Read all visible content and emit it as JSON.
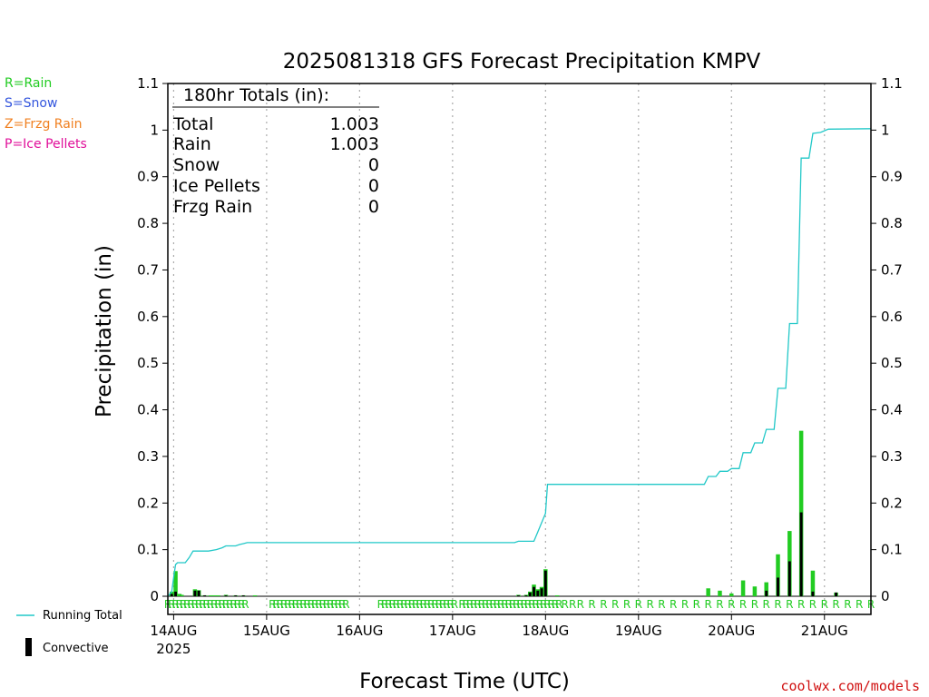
{
  "colors": {
    "rain": "#22cc22",
    "snow": "#3355dd",
    "frzg_rain": "#f08020",
    "ice_pellets": "#e0109a",
    "running_total": "#22c8c8",
    "convective": "#000000",
    "grid": "#aaaaaa",
    "credit": "#d01010"
  },
  "ptype_legend": [
    "R=Rain",
    "S=Snow",
    "Z=Frzg Rain",
    "P=Ice Pellets"
  ],
  "totals_box": {
    "header": "180hr Totals (in):",
    "rows": [
      {
        "label": "Total",
        "value": "1.003"
      },
      {
        "label": "Rain",
        "value": "1.003"
      },
      {
        "label": "Snow",
        "value": "0"
      },
      {
        "label": "Ice Pellets",
        "value": "0"
      },
      {
        "label": "Frzg Rain",
        "value": "0"
      }
    ]
  },
  "series_legend": {
    "running_total": "Running Total",
    "convective": "Convective"
  },
  "credit": "coolwx.com/models",
  "chart_data": {
    "type": "bar",
    "title": "2025081318 GFS Forecast Precipitation KMPV",
    "xlabel": "Forecast Time (UTC)",
    "ylabel": "Precipitation (in)",
    "ylim": [
      0,
      1.1
    ],
    "yticks": [
      "0",
      "0.1",
      "0.2",
      "0.3",
      "0.4",
      "0.5",
      "0.6",
      "0.7",
      "0.8",
      "0.9",
      "1",
      "1.1"
    ],
    "xlim_hours": [
      -1.5,
      180
    ],
    "x_ticks": [
      {
        "hour": 0,
        "label": "14AUG",
        "sublabel": "2025"
      },
      {
        "hour": 24,
        "label": "15AUG"
      },
      {
        "hour": 48,
        "label": "16AUG"
      },
      {
        "hour": 72,
        "label": "17AUG"
      },
      {
        "hour": 96,
        "label": "18AUG"
      },
      {
        "hour": 120,
        "label": "19AUG"
      },
      {
        "hour": 144,
        "label": "20AUG"
      },
      {
        "hour": 168,
        "label": "21AUG"
      }
    ],
    "precip_bars": [
      {
        "hour": -0.5,
        "total": 0.01,
        "convective": 0.005
      },
      {
        "hour": 0.5,
        "total": 0.054,
        "convective": 0.01
      },
      {
        "hour": 1.5,
        "total": 0.005,
        "convective": 0.0
      },
      {
        "hour": 1.9,
        "total": 0.003,
        "convective": 0.003
      },
      {
        "hour": 2.1,
        "total": 0.003,
        "convective": 0.0
      },
      {
        "hour": 5.5,
        "total": 0.015,
        "convective": 0.012
      },
      {
        "hour": 6.5,
        "total": 0.013,
        "convective": 0.012
      },
      {
        "hour": 8,
        "total": 0.002,
        "convective": 0.002
      },
      {
        "hour": 9.5,
        "total": 0.002,
        "convective": 0.0
      },
      {
        "hour": 10.5,
        "total": 0.002,
        "convective": 0.0
      },
      {
        "hour": 11.5,
        "total": 0.002,
        "convective": 0.0
      },
      {
        "hour": 13.5,
        "total": 0.003,
        "convective": 0.002
      },
      {
        "hour": 16,
        "total": 0.002,
        "convective": 0.002
      },
      {
        "hour": 18,
        "total": 0.002,
        "convective": 0.002
      },
      {
        "hour": 21,
        "total": 0.002,
        "convective": 0.0
      },
      {
        "hour": 89,
        "total": 0.003,
        "convective": 0.002
      },
      {
        "hour": 91,
        "total": 0.003,
        "convective": 0.002
      },
      {
        "hour": 92,
        "total": 0.01,
        "convective": 0.008
      },
      {
        "hour": 93,
        "total": 0.025,
        "convective": 0.02
      },
      {
        "hour": 94,
        "total": 0.015,
        "convective": 0.012
      },
      {
        "hour": 95,
        "total": 0.02,
        "convective": 0.017
      },
      {
        "hour": 96,
        "total": 0.058,
        "convective": 0.055
      },
      {
        "hour": 99,
        "total": 0.002,
        "convective": 0.0
      },
      {
        "hour": 138,
        "total": 0.017,
        "convective": 0.0
      },
      {
        "hour": 141,
        "total": 0.012,
        "convective": 0.0
      },
      {
        "hour": 144,
        "total": 0.006,
        "convective": 0.0
      },
      {
        "hour": 147,
        "total": 0.034,
        "convective": 0.0
      },
      {
        "hour": 150,
        "total": 0.021,
        "convective": 0.0
      },
      {
        "hour": 153,
        "total": 0.03,
        "convective": 0.012
      },
      {
        "hour": 156,
        "total": 0.09,
        "convective": 0.04
      },
      {
        "hour": 159,
        "total": 0.14,
        "convective": 0.075
      },
      {
        "hour": 162,
        "total": 0.355,
        "convective": 0.18
      },
      {
        "hour": 165,
        "total": 0.055,
        "convective": 0.01
      },
      {
        "hour": 171,
        "total": 0.008,
        "convective": 0.008
      }
    ],
    "running_total": [
      [
        -1.5,
        0.0
      ],
      [
        -0.5,
        0.01
      ],
      [
        0,
        0.04
      ],
      [
        0.5,
        0.068
      ],
      [
        1,
        0.072
      ],
      [
        3,
        0.072
      ],
      [
        4,
        0.083
      ],
      [
        5,
        0.097
      ],
      [
        9,
        0.097
      ],
      [
        11,
        0.1
      ],
      [
        12.5,
        0.104
      ],
      [
        13.5,
        0.108
      ],
      [
        16,
        0.108
      ],
      [
        17,
        0.111
      ],
      [
        18,
        0.113
      ],
      [
        19,
        0.115
      ],
      [
        88,
        0.115
      ],
      [
        89,
        0.118
      ],
      [
        93,
        0.118
      ],
      [
        94,
        0.138
      ],
      [
        95,
        0.158
      ],
      [
        96,
        0.178
      ],
      [
        96.5,
        0.24
      ],
      [
        137,
        0.24
      ],
      [
        138,
        0.257
      ],
      [
        140,
        0.257
      ],
      [
        141,
        0.268
      ],
      [
        143,
        0.268
      ],
      [
        144,
        0.274
      ],
      [
        146,
        0.274
      ],
      [
        147,
        0.308
      ],
      [
        149,
        0.308
      ],
      [
        150,
        0.329
      ],
      [
        152,
        0.329
      ],
      [
        153,
        0.358
      ],
      [
        155,
        0.358
      ],
      [
        156,
        0.446
      ],
      [
        158,
        0.446
      ],
      [
        159,
        0.585
      ],
      [
        161,
        0.585
      ],
      [
        162,
        0.94
      ],
      [
        164,
        0.94
      ],
      [
        165,
        0.993
      ],
      [
        167,
        0.995
      ],
      [
        169,
        1.002
      ],
      [
        180,
        1.003
      ]
    ],
    "ptype_marks": {
      "symbol": "R",
      "hours": [
        -1.5,
        -0.5,
        0.5,
        1.5,
        2.5,
        3.5,
        4.5,
        5.5,
        6.5,
        7.5,
        8.5,
        9.5,
        10.5,
        11.5,
        12.5,
        13.5,
        14.5,
        15.5,
        16.5,
        17.5,
        18.5,
        25.5,
        26.5,
        27.5,
        28.5,
        29.5,
        30.5,
        31.5,
        32.5,
        33.5,
        34.5,
        35.5,
        36.5,
        37.5,
        38.5,
        39.5,
        40.5,
        41.5,
        42.5,
        43.5,
        44.5,
        53.5,
        54.5,
        55.5,
        56.5,
        57.5,
        58.5,
        59.5,
        60.5,
        61.5,
        62.5,
        63.5,
        64.5,
        65.5,
        66.5,
        67.5,
        68.5,
        69.5,
        70.5,
        71.5,
        72.5,
        74.5,
        75.5,
        76.5,
        77.5,
        78.5,
        79.5,
        80.5,
        81.5,
        82.5,
        83.5,
        84.5,
        85.5,
        86.5,
        87.5,
        88.5,
        89.5,
        90.5,
        91.5,
        92.5,
        93.5,
        94.5,
        95.5,
        96.5,
        97.5,
        98.5,
        99.5,
        101,
        103,
        105,
        108,
        111,
        114,
        117,
        120,
        123,
        126,
        129,
        132,
        135,
        138,
        141,
        144,
        147,
        150,
        153,
        156,
        159,
        162,
        165,
        168,
        171,
        174,
        177,
        180
      ]
    }
  }
}
